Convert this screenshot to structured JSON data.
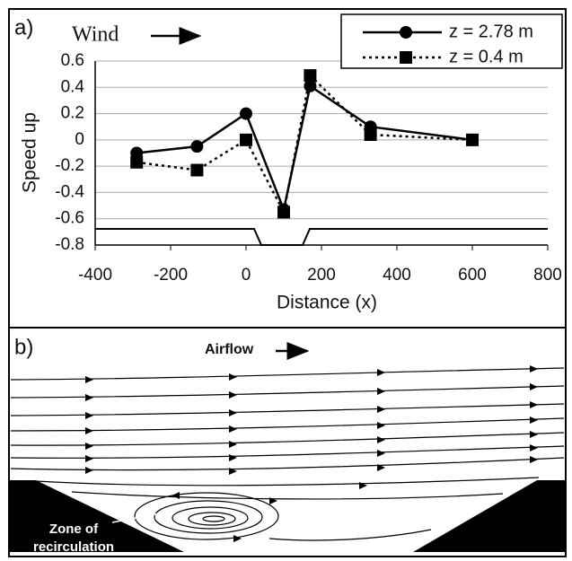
{
  "chart_data": {
    "type": "line",
    "panel_label": "a)",
    "annotation": "Wind",
    "xlabel": "Distance (x)",
    "ylabel": "Speed up",
    "xlim": [
      -400,
      800
    ],
    "xticks": [
      -400,
      -200,
      0,
      200,
      400,
      600,
      800
    ],
    "ylim": [
      -0.8,
      0.6
    ],
    "yticks": [
      0.6,
      0.4,
      0.2,
      0,
      -0.2,
      -0.4,
      -0.6,
      -0.8
    ],
    "grid": true,
    "legend": "upper right",
    "x": [
      -290,
      -130,
      0,
      100,
      170,
      330,
      600
    ],
    "series": [
      {
        "name": "z = 2.78 m",
        "color": "#000000",
        "marker": "circle",
        "dash": "solid",
        "values": [
          -0.1,
          -0.05,
          0.2,
          -0.53,
          0.41,
          0.1,
          0
        ]
      },
      {
        "name": "z = 0.4 m",
        "color": "#000000",
        "marker": "square",
        "dash": "dotted",
        "values": [
          -0.17,
          -0.23,
          0,
          -0.55,
          0.49,
          0.04,
          0
        ]
      }
    ]
  },
  "diagram": {
    "panel_label": "b)",
    "airflow": "Airflow",
    "annotation": [
      "Zone of",
      "recirculation"
    ]
  }
}
